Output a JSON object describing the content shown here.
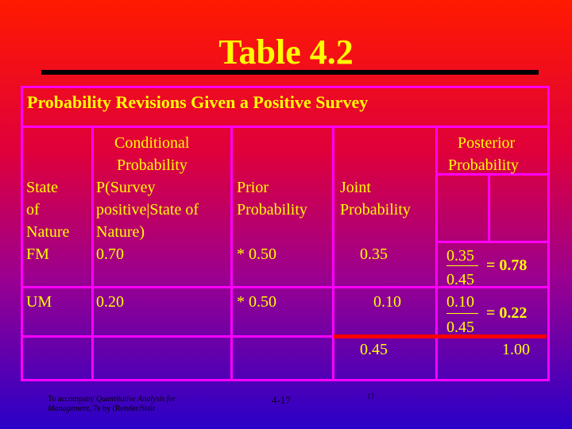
{
  "slide": {
    "title": "Table 4.2",
    "subtitle": "Probability Revisions Given a Positive Survey"
  },
  "table": {
    "headers": {
      "state": [
        "State",
        "of",
        "Nature"
      ],
      "conditional": [
        "Conditional",
        "Probability",
        "P(Survey",
        "positive|State of",
        "Nature)"
      ],
      "prior": "Prior\nProbability",
      "prior_lines": [
        "Prior",
        "Probability"
      ],
      "joint_lines": [
        "Joint",
        "Probability"
      ],
      "posterior_lines": [
        "Posterior",
        "Probability"
      ]
    },
    "rows": [
      {
        "state": "FM",
        "conditional": "0.70",
        "prior": "* 0.50",
        "joint": "0.35",
        "post_num": "0.35",
        "post_den": "0.45",
        "post_result": "= 0.78"
      },
      {
        "state": "UM",
        "conditional": "0.20",
        "prior": "* 0.50",
        "joint": "0.10",
        "post_num": "0.10",
        "post_den": "0.45",
        "post_result": "= 0.22"
      }
    ],
    "totals": {
      "joint": "0.45",
      "posterior": "1.00"
    }
  },
  "footer": {
    "accompany_prefix": "To accompany ",
    "accompany_book": "Quantitative Analysis for Management",
    "accompany_suffix": ", 7e by (Render/Stair",
    "accompany_line1": "To accompany Quantitative Analysis for",
    "accompany_line2": "Management, 7e by (Render/Stair",
    "page_label": "4-17",
    "page_number": "17"
  },
  "colors": {
    "text": "#ffff00",
    "grid": "#ff00ff",
    "accent": "#ff0000"
  }
}
